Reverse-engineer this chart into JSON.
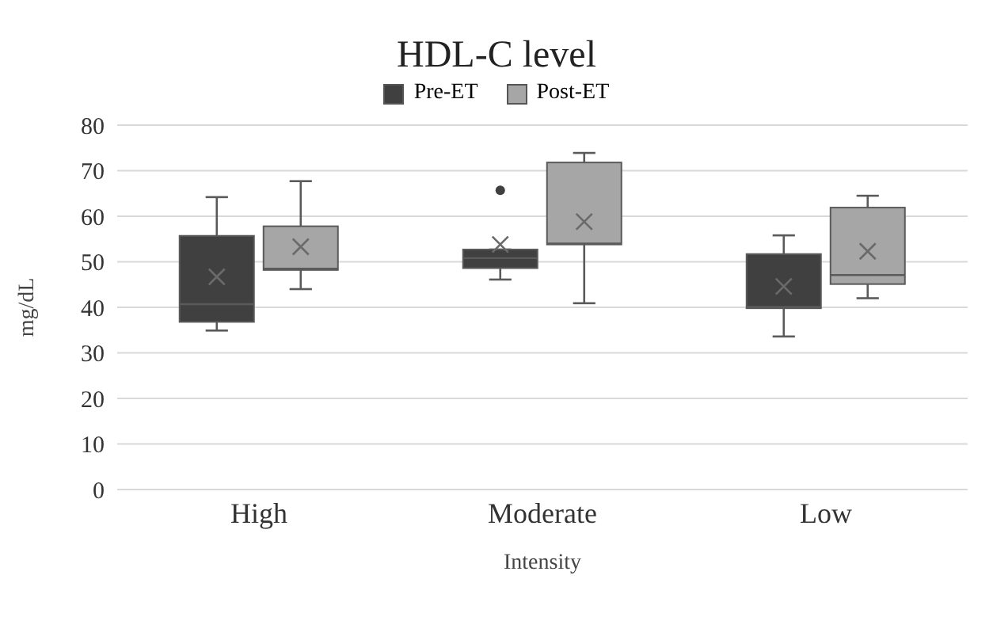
{
  "chart_data": {
    "type": "box",
    "title": "HDL-C level",
    "xlabel": "Intensity",
    "ylabel": "mg/dL",
    "categories": [
      "High",
      "Moderate",
      "Low"
    ],
    "ylim": [
      0,
      80
    ],
    "yticks": [
      0,
      10,
      20,
      30,
      40,
      50,
      60,
      70,
      80
    ],
    "grid": "y",
    "legend": "top",
    "series": [
      {
        "name": "Pre-ET",
        "color": "#404040",
        "boxes": [
          {
            "low": 34.9,
            "q1": 36.8,
            "median": 40.7,
            "q3": 55.7,
            "high": 64.2,
            "mean": 46.7
          },
          {
            "low": 46.1,
            "q1": 48.6,
            "median": 50.8,
            "q3": 52.7,
            "high": 52.7,
            "mean": 53.8,
            "outliers": [
              65.7
            ]
          },
          {
            "low": 33.6,
            "q1": 39.8,
            "median": 40.1,
            "q3": 51.7,
            "high": 55.8,
            "mean": 44.6
          }
        ]
      },
      {
        "name": "Post-ET",
        "color": "#a6a6a6",
        "boxes": [
          {
            "low": 44,
            "q1": 48.2,
            "median": 48.5,
            "q3": 57.8,
            "high": 67.7,
            "mean": 53.3
          },
          {
            "low": 40.9,
            "q1": 53.8,
            "median": 54,
            "q3": 71.8,
            "high": 73.9,
            "mean": 58.8
          },
          {
            "low": 42,
            "q1": 45.1,
            "median": 47.1,
            "q3": 61.9,
            "high": 64.5,
            "mean": 52.3
          }
        ]
      }
    ]
  }
}
